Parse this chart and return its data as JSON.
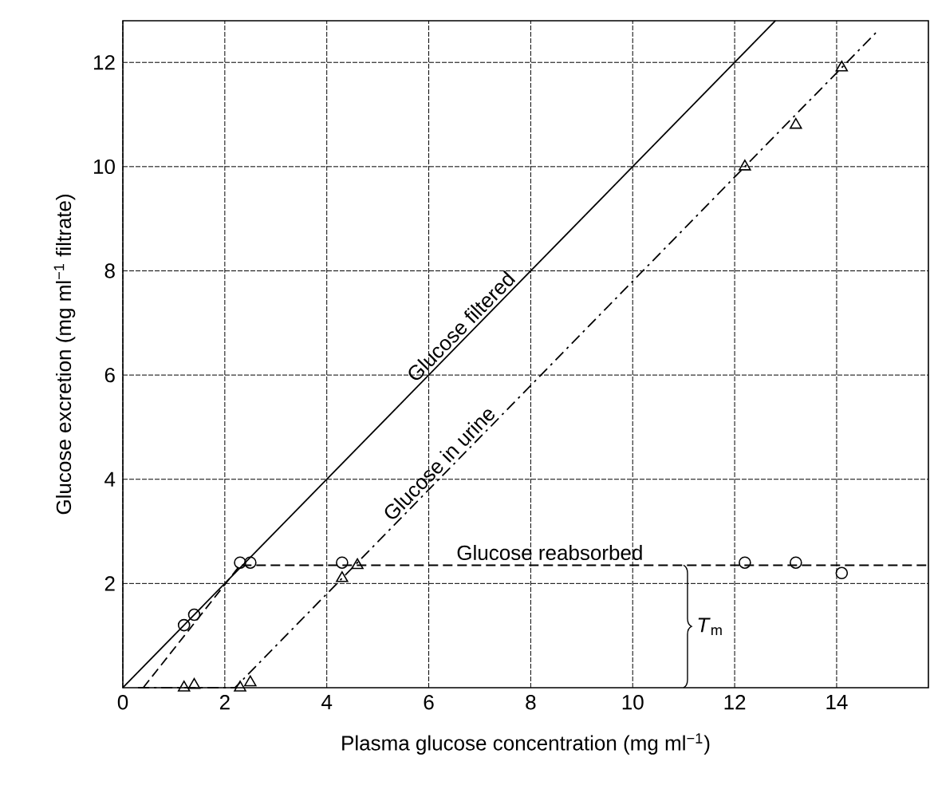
{
  "chart_data": {
    "type": "line",
    "xlabel": "Plasma glucose concentration (mg ml$^{−1}$)",
    "ylabel": "Glucose excretion (mg ml$^{−1}$ filtrate)",
    "xlim": [
      0,
      15.8
    ],
    "ylim": [
      0,
      12.8
    ],
    "xticks": [
      0,
      2,
      4,
      6,
      8,
      10,
      12,
      14
    ],
    "yticks": [
      2,
      4,
      6,
      8,
      10,
      12
    ],
    "grid": true,
    "legend": false,
    "series": [
      {
        "name": "Glucose filtered",
        "color": "#000000",
        "line_style": "solid",
        "marker": "none",
        "x": [
          0,
          12.8
        ],
        "values": [
          0,
          12.8
        ]
      },
      {
        "name": "Glucose in urine",
        "color": "#000000",
        "line_style": "dashdot",
        "marker": "none",
        "x": [
          0.3,
          2.2,
          14.8
        ],
        "values": [
          0,
          0,
          12.6
        ]
      },
      {
        "name": "Glucose reabsorbed",
        "color": "#000000",
        "line_style": "dashed",
        "marker": "none",
        "x": [
          0.4,
          2.3,
          15.8
        ],
        "values": [
          0,
          2.35,
          2.35
        ]
      },
      {
        "type": "scatter",
        "color": "#000000",
        "marker": "triangle",
        "x": [
          1.2,
          1.4,
          2.3,
          2.5,
          4.3,
          4.6,
          12.2,
          13.2,
          14.1
        ],
        "values": [
          0,
          0.05,
          0,
          0.1,
          2.1,
          2.35,
          10,
          10.8,
          11.9
        ]
      },
      {
        "type": "scatter",
        "color": "#000000",
        "marker": "circle",
        "x": [
          1.2,
          1.4,
          2.3,
          2.5,
          4.3,
          12.2,
          13.2,
          14.1
        ],
        "values": [
          1.2,
          1.4,
          2.4,
          2.4,
          2.4,
          2.4,
          2.4,
          2.2
        ]
      }
    ],
    "annotations": [
      "*T*$_{m}$"
    ]
  }
}
